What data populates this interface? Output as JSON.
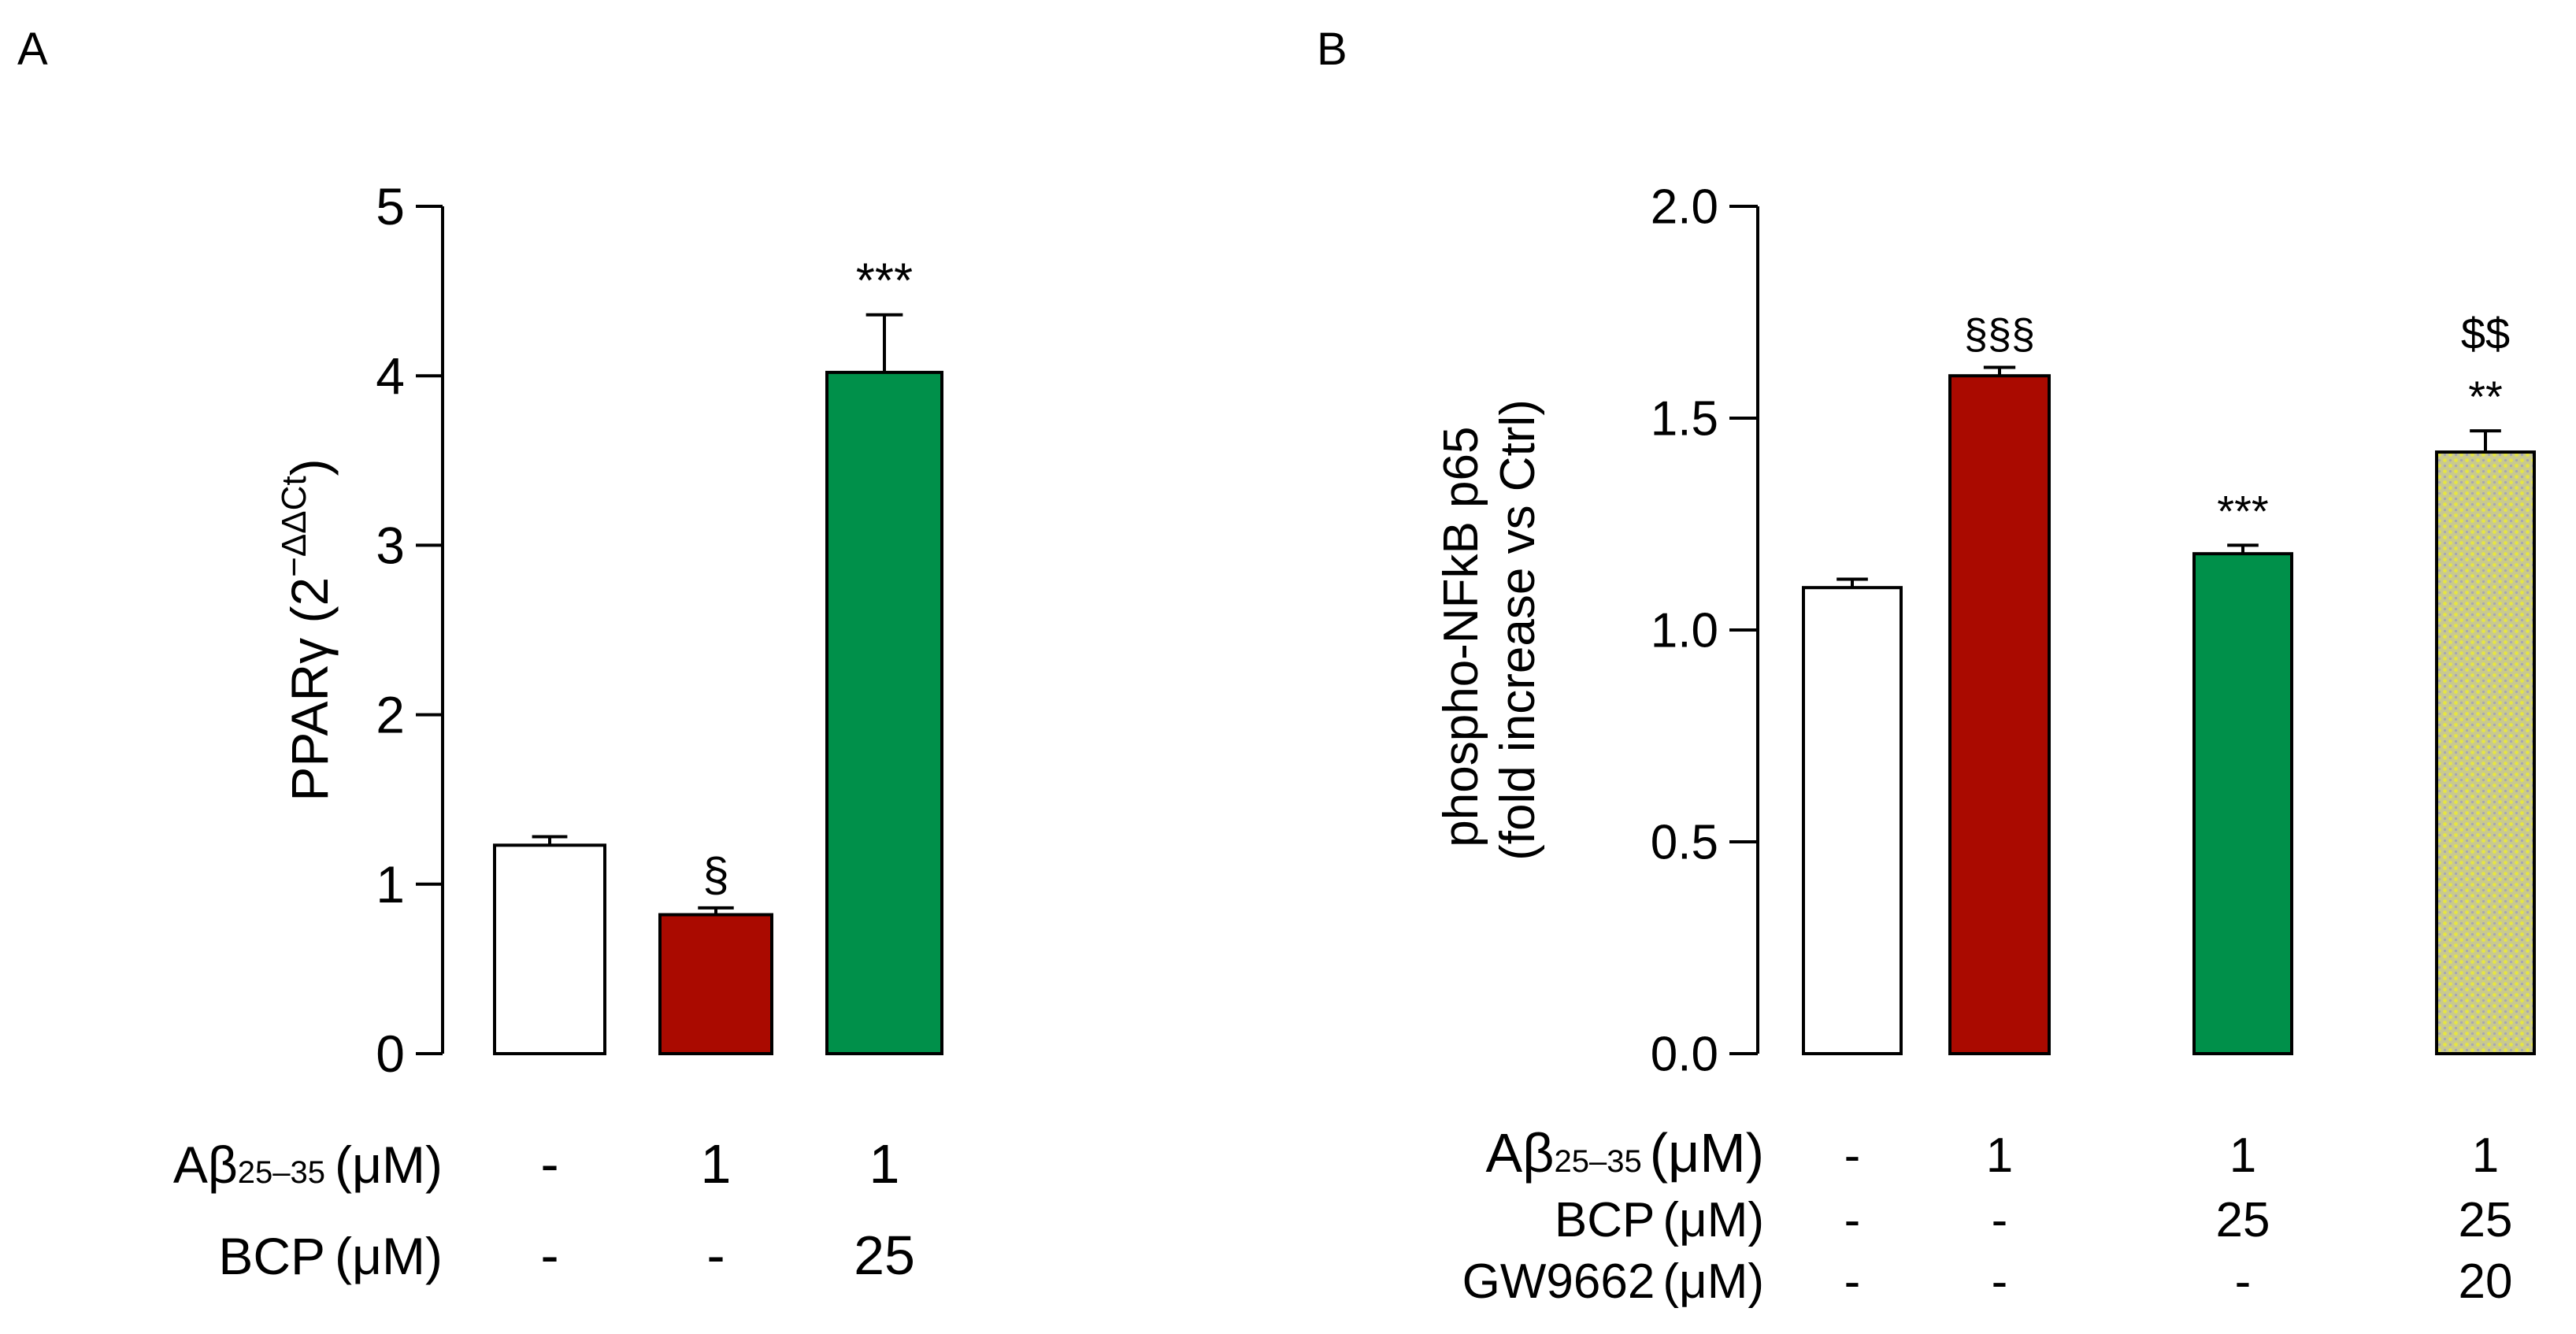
{
  "chart_data": [
    {
      "panel": "A",
      "type": "bar",
      "ylabel": "PPARγ (2^−ΔΔCt)",
      "ylabel_parts": {
        "main": "PPARγ (2",
        "sup": "−ΔΔCt",
        "close": ")"
      },
      "ylim": [
        0,
        5
      ],
      "yticks": [
        0,
        1,
        2,
        3,
        4,
        5
      ],
      "grid": false,
      "values": [
        1.23,
        0.82,
        4.02
      ],
      "errors": [
        0.05,
        0.04,
        0.34
      ],
      "colors": [
        "#ffffff",
        "#aa0a00",
        "#00904a"
      ],
      "annotations": [
        [],
        [
          "§"
        ],
        [
          "***"
        ]
      ],
      "conditions": [
        {
          "label": "Aβ",
          "sub": "25–35",
          "unit": "(μM)",
          "values": [
            "-",
            "1",
            "1"
          ]
        },
        {
          "label": "BCP",
          "sub": "",
          "unit": "(μM)",
          "values": [
            "-",
            "-",
            "25"
          ]
        }
      ]
    },
    {
      "panel": "B",
      "type": "bar",
      "ylabel": "phospho-NFkB p65 (fold increase vs Ctrl)",
      "ylabel_lines": [
        "phospho-NFkB p65",
        "(fold increase vs Ctrl)"
      ],
      "ylim": [
        0,
        2
      ],
      "yticks": [
        "0.0",
        "0.5",
        "1.0",
        "1.5",
        "2.0"
      ],
      "grid": false,
      "values": [
        1.1,
        1.6,
        1.18,
        1.42
      ],
      "errors": [
        0.02,
        0.02,
        0.02,
        0.05
      ],
      "colors": [
        "#ffffff",
        "#aa0a00",
        "#00904a",
        "#c8c890"
      ],
      "annotations": [
        [],
        [
          "§§§"
        ],
        [
          "***"
        ],
        [
          "$$",
          "**"
        ]
      ],
      "conditions": [
        {
          "label": "Aβ",
          "sub": "25–35",
          "unit": "(μM)",
          "values": [
            "-",
            "1",
            "1",
            "1"
          ]
        },
        {
          "label": "BCP",
          "sub": "",
          "unit": "(μM)",
          "values": [
            "-",
            "-",
            "25",
            "25"
          ]
        },
        {
          "label": "GW9662",
          "sub": "",
          "unit": "(μM)",
          "values": [
            "-",
            "-",
            "-",
            "20"
          ]
        }
      ]
    }
  ]
}
